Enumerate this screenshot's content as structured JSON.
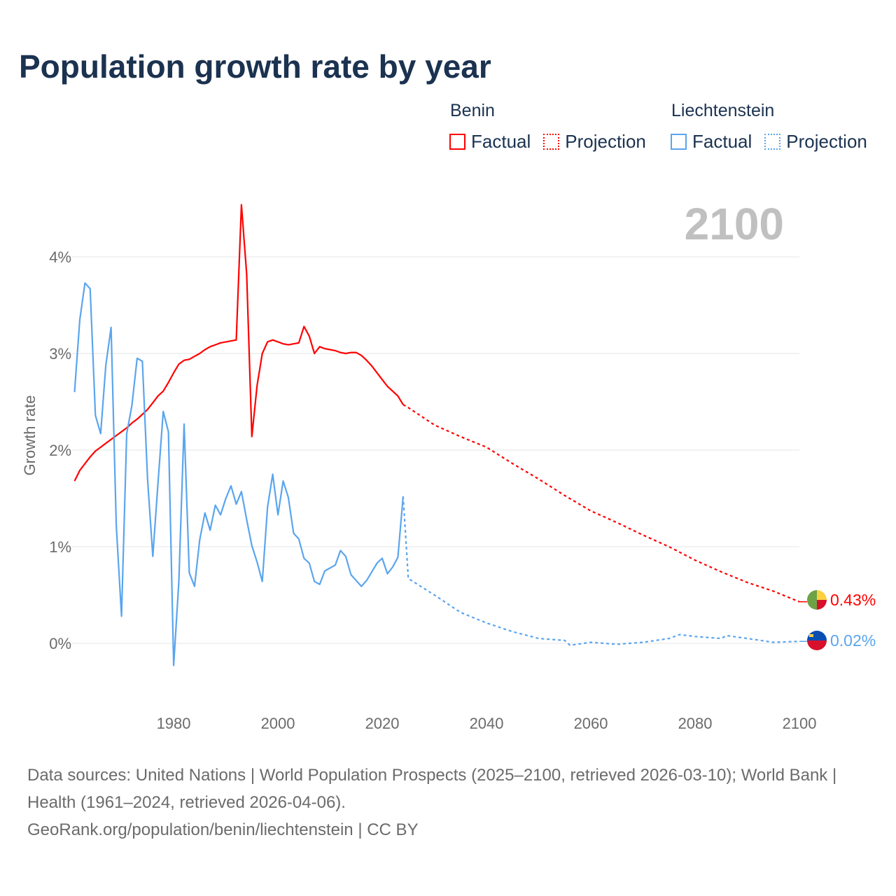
{
  "title": "Population growth rate by year",
  "legend": {
    "groups": [
      {
        "name": "Benin",
        "factual": "Factual",
        "projection": "Projection",
        "color": "#ff0000"
      },
      {
        "name": "Liechtenstein",
        "factual": "Factual",
        "projection": "Projection",
        "color": "#5aa5ee"
      }
    ]
  },
  "year_display": "2100",
  "footer": {
    "sources": "Data sources: United Nations | World Population Prospects (2025–2100, retrieved 2026-03-10); World Bank | Health (1961–2024, retrieved 2026-04-06).",
    "credit": "GeoRank.org/population/benin/liechtenstein | CC BY"
  },
  "chart_data": {
    "type": "line",
    "title": "Population growth rate by year",
    "xlabel": "",
    "ylabel": "Growth rate",
    "xlim": [
      1961,
      2100
    ],
    "ylim": [
      -0.6,
      4.6
    ],
    "x_ticks": [
      1980,
      2000,
      2020,
      2040,
      2060,
      2080,
      2100
    ],
    "y_ticks": [
      0,
      1,
      2,
      3,
      4
    ],
    "y_tick_labels": [
      "0%",
      "1%",
      "2%",
      "3%",
      "4%"
    ],
    "grid": true,
    "legend_position": "top-right",
    "series": [
      {
        "name": "Benin",
        "color": "#ff0000",
        "end_label": "0.43%",
        "factual": {
          "x": [
            1961,
            1962,
            1963,
            1964,
            1965,
            1966,
            1967,
            1968,
            1969,
            1970,
            1971,
            1972,
            1973,
            1974,
            1975,
            1976,
            1977,
            1978,
            1979,
            1980,
            1981,
            1982,
            1983,
            1984,
            1985,
            1986,
            1987,
            1988,
            1989,
            1990,
            1991,
            1992,
            1993,
            1994,
            1995,
            1996,
            1997,
            1998,
            1999,
            2000,
            2001,
            2002,
            2003,
            2004,
            2005,
            2006,
            2007,
            2008,
            2009,
            2010,
            2011,
            2012,
            2013,
            2014,
            2015,
            2016,
            2017,
            2018,
            2019,
            2020,
            2021,
            2022,
            2023,
            2024
          ],
          "y": [
            1.68,
            1.79,
            1.86,
            1.93,
            1.99,
            2.03,
            2.07,
            2.11,
            2.15,
            2.19,
            2.23,
            2.28,
            2.32,
            2.37,
            2.42,
            2.49,
            2.56,
            2.61,
            2.7,
            2.8,
            2.89,
            2.93,
            2.94,
            2.97,
            3.0,
            3.04,
            3.07,
            3.09,
            3.11,
            3.12,
            3.13,
            3.14,
            4.54,
            3.82,
            2.14,
            2.67,
            3.0,
            3.12,
            3.14,
            3.12,
            3.1,
            3.09,
            3.1,
            3.11,
            3.28,
            3.18,
            3.0,
            3.07,
            3.05,
            3.04,
            3.03,
            3.01,
            3.0,
            3.01,
            3.01,
            2.98,
            2.93,
            2.87,
            2.8,
            2.73,
            2.66,
            2.61,
            2.56,
            2.47
          ]
        },
        "projection": {
          "x": [
            2024,
            2025,
            2030,
            2035,
            2040,
            2045,
            2050,
            2055,
            2060,
            2065,
            2070,
            2075,
            2080,
            2085,
            2090,
            2095,
            2100
          ],
          "y": [
            2.47,
            2.44,
            2.26,
            2.14,
            2.03,
            1.86,
            1.7,
            1.53,
            1.37,
            1.25,
            1.12,
            1.0,
            0.86,
            0.74,
            0.63,
            0.54,
            0.43
          ]
        }
      },
      {
        "name": "Liechtenstein",
        "color": "#5aa5ee",
        "end_label": "0.02%",
        "factual": {
          "x": [
            1961,
            1962,
            1963,
            1964,
            1965,
            1966,
            1967,
            1968,
            1969,
            1970,
            1971,
            1972,
            1973,
            1974,
            1975,
            1976,
            1977,
            1978,
            1979,
            1980,
            1981,
            1982,
            1983,
            1984,
            1985,
            1986,
            1987,
            1988,
            1989,
            1990,
            1991,
            1992,
            1993,
            1994,
            1995,
            1996,
            1997,
            1998,
            1999,
            2000,
            2001,
            2002,
            2003,
            2004,
            2005,
            2006,
            2007,
            2008,
            2009,
            2010,
            2011,
            2012,
            2013,
            2014,
            2015,
            2016,
            2017,
            2018,
            2019,
            2020,
            2021,
            2022,
            2023,
            2024
          ],
          "y": [
            2.6,
            3.35,
            3.73,
            3.67,
            2.36,
            2.17,
            2.88,
            3.27,
            1.22,
            0.28,
            2.17,
            2.46,
            2.95,
            2.92,
            1.7,
            0.9,
            1.66,
            2.4,
            2.19,
            -0.23,
            0.64,
            2.27,
            0.73,
            0.59,
            1.07,
            1.35,
            1.17,
            1.43,
            1.33,
            1.5,
            1.63,
            1.44,
            1.57,
            1.28,
            1.01,
            0.84,
            0.64,
            1.41,
            1.75,
            1.33,
            1.68,
            1.51,
            1.14,
            1.08,
            0.88,
            0.83,
            0.64,
            0.61,
            0.75,
            0.78,
            0.81,
            0.96,
            0.9,
            0.71,
            0.65,
            0.59,
            0.65,
            0.74,
            0.83,
            0.88,
            0.72,
            0.79,
            0.89,
            1.52
          ]
        },
        "projection": {
          "x": [
            2024,
            2025,
            2030,
            2035,
            2040,
            2045,
            2050,
            2055,
            2056,
            2060,
            2065,
            2070,
            2075,
            2077,
            2080,
            2085,
            2086,
            2090,
            2095,
            2100
          ],
          "y": [
            1.52,
            0.67,
            0.5,
            0.32,
            0.21,
            0.12,
            0.05,
            0.03,
            -0.02,
            0.01,
            -0.01,
            0.01,
            0.05,
            0.09,
            0.07,
            0.05,
            0.08,
            0.05,
            0.01,
            0.02
          ]
        }
      }
    ]
  }
}
